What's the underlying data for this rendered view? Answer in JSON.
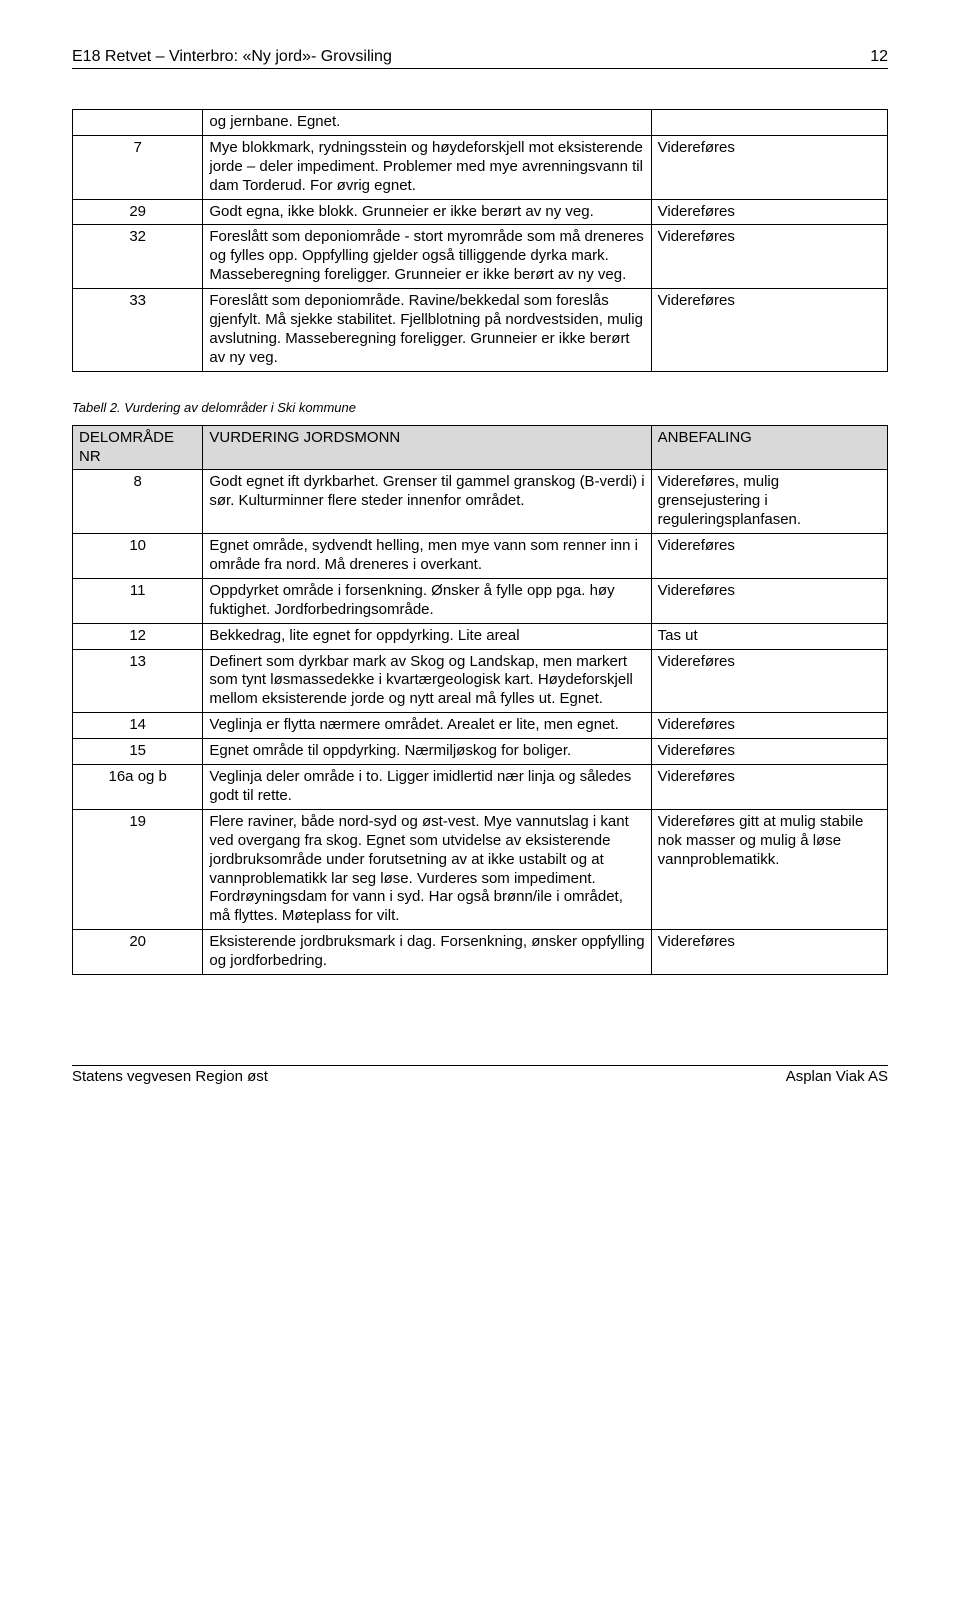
{
  "header": {
    "title": "E18 Retvet – Vinterbro: «Ny jord»- Grovsiling",
    "page": "12"
  },
  "table1": {
    "col_widths": [
      "16%",
      "55%",
      "29%"
    ],
    "rows": [
      {
        "nr": "",
        "desc": "og jernbane. Egnet.",
        "rec": ""
      },
      {
        "nr": "7",
        "desc": "Mye blokkmark, rydningsstein og høydeforskjell mot eksisterende jorde – deler impediment. Problemer med mye avrenningsvann til dam Torderud. For øvrig egnet.",
        "rec": "Videreføres"
      },
      {
        "nr": "29",
        "desc": "Godt egna, ikke blokk. Grunneier er ikke berørt av ny veg.",
        "rec": "Videreføres"
      },
      {
        "nr": "32",
        "desc": "Foreslått som deponiområde - stort myrområde som må dreneres og fylles opp. Oppfylling gjelder også tilliggende dyrka mark. Masseberegning foreligger. Grunneier er ikke berørt av ny veg.",
        "rec": "Videreføres"
      },
      {
        "nr": "33",
        "desc": "Foreslått som deponiområde. Ravine/bekkedal som foreslås gjenfylt. Må sjekke stabilitet. Fjellblotning på nordvestsiden, mulig avslutning. Masseberegning foreligger. Grunneier er ikke berørt av ny veg.",
        "rec": "Videreføres"
      }
    ]
  },
  "caption2": "Tabell 2. Vurdering av delområder i Ski kommune",
  "table2": {
    "col_widths": [
      "16%",
      "55%",
      "29%"
    ],
    "header": {
      "nr": "DELOMRÅDE NR",
      "desc": "VURDERING JORDSMONN",
      "rec": "ANBEFALING"
    },
    "rows": [
      {
        "nr": "8",
        "desc": "Godt egnet ift dyrkbarhet. Grenser til gammel granskog (B-verdi) i sør. Kulturminner flere steder innenfor området.",
        "rec": "Videreføres, mulig grensejustering i reguleringsplanfasen."
      },
      {
        "nr": "10",
        "desc": "Egnet område, sydvendt helling, men mye vann som renner inn i område fra nord. Må dreneres i overkant.",
        "rec": "Videreføres"
      },
      {
        "nr": "11",
        "desc": "Oppdyrket område i forsenkning. Ønsker å fylle opp pga. høy fuktighet. Jordforbedringsområde.",
        "rec": "Videreføres"
      },
      {
        "nr": "12",
        "desc": "Bekkedrag, lite egnet for oppdyrking. Lite areal",
        "rec": "Tas ut"
      },
      {
        "nr": "13",
        "desc": "Definert som dyrkbar mark av Skog og Landskap, men markert som tynt løsmassedekke i kvartærgeologisk kart. Høydeforskjell mellom eksisterende jorde og nytt areal må fylles ut. Egnet.",
        "rec": "Videreføres"
      },
      {
        "nr": "14",
        "desc": "Veglinja er flytta nærmere området. Arealet er lite, men egnet.",
        "rec": "Videreføres"
      },
      {
        "nr": "15",
        "desc": "Egnet område til oppdyrking. Nærmiljøskog for boliger.",
        "rec": "Videreføres"
      },
      {
        "nr": "16a og b",
        "desc": "Veglinja deler område i to. Ligger imidlertid nær linja og således godt til rette.",
        "rec": "Videreføres"
      },
      {
        "nr": "19",
        "desc": "Flere raviner, både nord-syd og øst-vest. Mye vannutslag i kant ved overgang fra skog. Egnet som utvidelse av eksisterende jordbruksområde under forutsetning av at ikke ustabilt og at vannproblematikk lar seg løse. Vurderes som impediment. Fordrøyningsdam for vann i syd. Har også brønn/ile i området, må flyttes. Møteplass for vilt.",
        "rec": "Videreføres gitt at mulig stabile nok masser og mulig å løse vannproblematikk."
      },
      {
        "nr": "20",
        "desc": "Eksisterende jordbruksmark i dag. Forsenkning, ønsker oppfylling og jordforbedring.",
        "rec": "Videreføres"
      }
    ]
  },
  "footer": {
    "left": "Statens vegvesen Region øst",
    "right": "Asplan Viak AS"
  }
}
